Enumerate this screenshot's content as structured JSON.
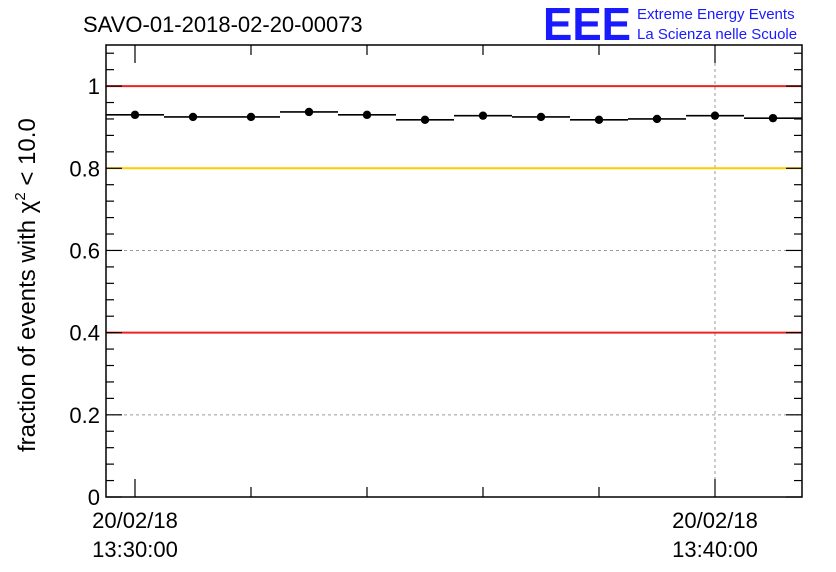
{
  "chart_data": {
    "type": "scatter",
    "title": "SAVO-01-2018-02-20-00073",
    "ylabel_main": "fraction of events with χ",
    "ylabel_sup": "2",
    "ylabel_tail": " < 10.0",
    "ylim": [
      0,
      1.1
    ],
    "yticks": [
      0,
      0.2,
      0.4,
      0.6,
      0.8,
      1
    ],
    "ytick_labels": [
      "0",
      "0.2",
      "0.4",
      "0.6",
      "0.8",
      "1"
    ],
    "xlim_minutes": [
      -0.5,
      11.5
    ],
    "xticks": [
      {
        "minute": 0,
        "date": "20/02/18",
        "time": "13:30:00"
      },
      {
        "minute": 10,
        "date": "20/02/18",
        "time": "13:40:00"
      }
    ],
    "grid": "dashed",
    "reference_lines": [
      {
        "y": 1.0,
        "color": "#ee2222"
      },
      {
        "y": 0.8,
        "color": "#ffcc00"
      },
      {
        "y": 0.4,
        "color": "#ee2222"
      }
    ],
    "points": [
      {
        "minute": 0,
        "y": 0.93
      },
      {
        "minute": 1,
        "y": 0.925
      },
      {
        "minute": 2,
        "y": 0.925
      },
      {
        "minute": 3,
        "y": 0.937
      },
      {
        "minute": 4,
        "y": 0.93
      },
      {
        "minute": 5,
        "y": 0.918
      },
      {
        "minute": 6,
        "y": 0.928
      },
      {
        "minute": 7,
        "y": 0.925
      },
      {
        "minute": 8,
        "y": 0.918
      },
      {
        "minute": 9,
        "y": 0.92
      },
      {
        "minute": 10,
        "y": 0.928
      },
      {
        "minute": 11,
        "y": 0.922
      }
    ]
  },
  "logo": {
    "mark": "EEE",
    "line1": "Extreme Energy Events",
    "line2": "La Scienza nelle Scuole",
    "color": "#1a1aff"
  }
}
